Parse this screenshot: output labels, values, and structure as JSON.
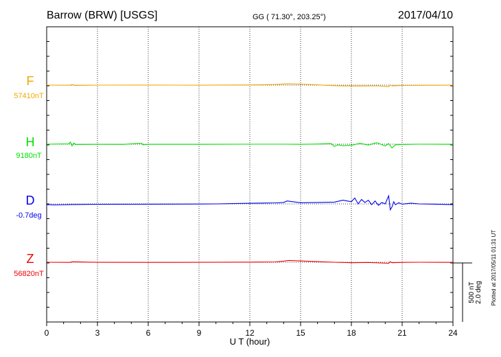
{
  "header": {
    "station": "Barrow (BRW)  [USGS]",
    "coords": "GG ( 71.30°, 203.25°)",
    "date": "2017/04/10"
  },
  "plotted_note": "Plotted at 2017/05/11 01:31  UT",
  "scale": {
    "line1": "500 nT",
    "line2": "2.0 deg"
  },
  "colors": {
    "F": "#f0a800",
    "H": "#00e000",
    "D": "#0000ee",
    "Z": "#ee0000"
  },
  "chart_data": {
    "type": "line",
    "title": "Barrow (BRW)  [USGS]",
    "xlabel": "U T (hour)",
    "ylabel": "",
    "xlim": [
      0,
      24
    ],
    "x_ticks": [
      "0",
      "3",
      "6",
      "9",
      "12",
      "15",
      "18",
      "21",
      "24"
    ],
    "grid": true,
    "series": [
      {
        "name": "F",
        "baseline_label": "57410nT",
        "x": [
          0,
          1.4,
          1.5,
          1.6,
          3,
          6,
          9,
          12,
          13.5,
          14.2,
          15,
          15.8,
          16.5,
          17.2,
          17.8,
          18.5,
          19.5,
          20.2,
          20.3,
          20.4,
          21,
          22,
          24
        ],
        "y": [
          57410,
          57408,
          57420,
          57405,
          57410,
          57411,
          57409,
          57414,
          57420,
          57432,
          57428,
          57418,
          57406,
          57400,
          57396,
          57395,
          57398,
          57385,
          57412,
          57396,
          57404,
          57406,
          57409
        ]
      },
      {
        "name": "H",
        "baseline_label": "9180nT",
        "x": [
          0,
          1.3,
          1.4,
          1.5,
          1.6,
          1.7,
          3,
          4.5,
          5.6,
          5.7,
          6,
          9,
          12,
          14,
          15,
          16,
          16.8,
          17,
          17.2,
          17.5,
          18,
          18.5,
          19,
          19.5,
          20,
          20.2,
          20.4,
          20.6,
          21,
          22,
          24
        ],
        "y": [
          9180,
          9185,
          9215,
          9150,
          9200,
          9175,
          9178,
          9176,
          9195,
          9170,
          9178,
          9178,
          9180,
          9180,
          9178,
          9182,
          9190,
          9140,
          9170,
          9155,
          9160,
          9195,
          9165,
          9205,
          9150,
          9190,
          9115,
          9170,
          9175,
          9180,
          9178
        ]
      },
      {
        "name": "D",
        "baseline_label": "-0.7deg",
        "x": [
          0,
          0.5,
          1.5,
          3,
          6,
          9,
          10,
          12,
          13.5,
          14,
          14.2,
          15,
          16,
          17,
          17.5,
          18,
          18.2,
          18.4,
          18.6,
          18.8,
          19,
          19.2,
          19.4,
          19.6,
          19.8,
          20,
          20.2,
          20.3,
          20.4,
          20.5,
          20.6,
          20.8,
          21,
          21.5,
          22,
          23,
          24
        ],
        "y": [
          -0.75,
          -0.77,
          -0.74,
          -0.73,
          -0.72,
          -0.71,
          -0.7,
          -0.66,
          -0.63,
          -0.6,
          -0.5,
          -0.62,
          -0.6,
          -0.58,
          -0.45,
          -0.55,
          -0.3,
          -0.7,
          -0.4,
          -0.6,
          -0.45,
          -0.75,
          -0.5,
          -0.8,
          -0.6,
          -0.7,
          -0.15,
          -1.1,
          -0.9,
          -0.55,
          -0.75,
          -0.62,
          -0.72,
          -0.65,
          -0.7,
          -0.72,
          -0.75
        ]
      },
      {
        "name": "Z",
        "baseline_label": "56820nT",
        "x": [
          0,
          1.4,
          1.5,
          3,
          6,
          9,
          12,
          13.5,
          14,
          14.3,
          15,
          16,
          17,
          17.5,
          18,
          19,
          20.2,
          20.3,
          20.4,
          21,
          22,
          24
        ],
        "y": [
          56820,
          56818,
          56828,
          56819,
          56818,
          56819,
          56822,
          56826,
          56840,
          56850,
          56842,
          56830,
          56820,
          56816,
          56812,
          56816,
          56802,
          56830,
          56812,
          56818,
          56820,
          56818
        ]
      }
    ]
  }
}
